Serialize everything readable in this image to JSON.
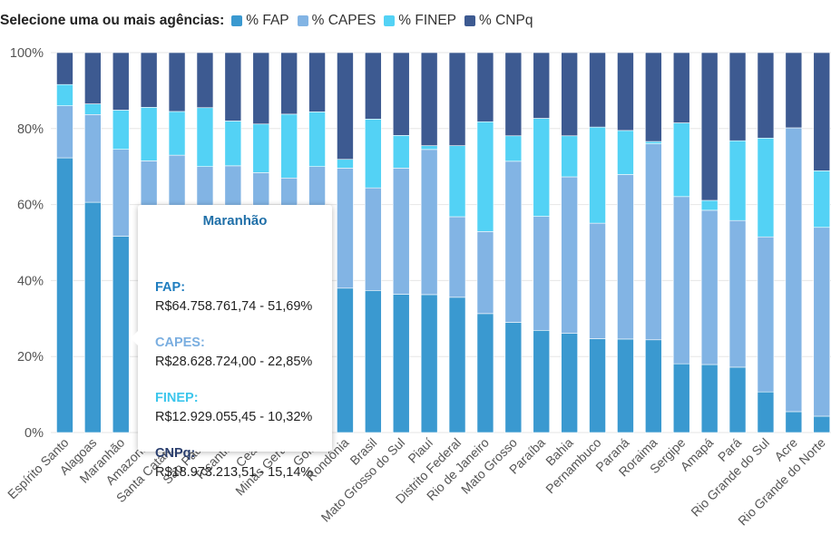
{
  "legend": {
    "title": "Selecione uma ou mais agências:",
    "items": [
      {
        "label": "% FAP",
        "color": "#3a99d0"
      },
      {
        "label": "% CAPES",
        "color": "#82b4e4"
      },
      {
        "label": "% FINEP",
        "color": "#53d2f5"
      },
      {
        "label": "% CNPq",
        "color": "#3d5a91"
      }
    ]
  },
  "tooltip": {
    "title": "Maranhão",
    "title_color": "#1f6fa8",
    "entries": [
      {
        "label": "FAP:",
        "value": "R$64.758.761,74 - 51,69%",
        "color": "#1f7dbf"
      },
      {
        "label": "CAPES:",
        "value": "R$28.628.724,00 - 22,85%",
        "color": "#7aaee0"
      },
      {
        "label": "FINEP:",
        "value": "R$12.929.055,45 - 10,32%",
        "color": "#3cc6ec"
      },
      {
        "label": "CNPq:",
        "value": "R$18.973.213,51 - 15,14%",
        "color": "#2b3f6e"
      }
    ]
  },
  "chart_data": {
    "type": "bar",
    "stacked": true,
    "percent": true,
    "ylim": [
      0,
      100
    ],
    "yticks": [
      "0%",
      "20%",
      "40%",
      "60%",
      "80%",
      "100%"
    ],
    "grid": true,
    "categories": [
      "Espírito Santo",
      "Alagoas",
      "Maranhão",
      "Amazonas",
      "Santa Catarina",
      "São Paulo",
      "Tocantins",
      "Ceará",
      "Minas Gerais",
      "Goiás",
      "Rondônia",
      "Brasil",
      "Mato Grosso do Sul",
      "Piauí",
      "Distrito Federal",
      "Rio de Janeiro",
      "Mato Grosso",
      "Paraíba",
      "Bahia",
      "Pernambuco",
      "Paraná",
      "Roraima",
      "Sergipe",
      "Amapá",
      "Pará",
      "Rio Grande do Sul",
      "Acre",
      "Rio Grande do Norte"
    ],
    "series": [
      {
        "name": "% FAP",
        "color": "#3a99d0",
        "values": [
          72.3,
          60.6,
          51.69,
          50.0,
          49.5,
          49.0,
          48.5,
          48.0,
          47.0,
          45.0,
          38.0,
          37.4,
          36.4,
          36.3,
          35.6,
          31.3,
          29.0,
          26.9,
          26.1,
          24.7,
          24.6,
          24.4,
          18.1,
          17.9,
          17.2,
          10.7,
          5.5,
          4.3
        ]
      },
      {
        "name": "% CAPES",
        "color": "#82b4e4",
        "values": [
          13.7,
          23.1,
          22.85,
          21.5,
          23.5,
          21.0,
          21.7,
          20.4,
          20.0,
          25.0,
          31.6,
          27.0,
          33.2,
          38.2,
          21.2,
          21.6,
          42.4,
          30.0,
          41.2,
          30.4,
          43.3,
          51.6,
          44.0,
          40.6,
          38.6,
          40.8,
          74.7,
          49.7
        ]
      },
      {
        "name": "% FINEP",
        "color": "#53d2f5",
        "values": [
          5.6,
          2.8,
          10.32,
          14.1,
          11.5,
          15.5,
          11.8,
          12.8,
          16.8,
          14.4,
          2.3,
          18.1,
          8.6,
          1.0,
          18.7,
          28.9,
          6.7,
          25.8,
          10.8,
          25.3,
          11.6,
          0.6,
          19.4,
          2.6,
          21.0,
          26.0,
          0.0,
          14.9
        ]
      },
      {
        "name": "% CNPq",
        "color": "#3d5a91",
        "values": [
          8.4,
          13.5,
          15.14,
          14.4,
          15.5,
          14.5,
          18.0,
          18.8,
          16.2,
          15.6,
          28.1,
          17.5,
          21.8,
          24.5,
          24.5,
          18.2,
          21.9,
          17.3,
          21.9,
          19.6,
          20.5,
          23.4,
          18.5,
          38.9,
          23.2,
          22.5,
          19.8,
          31.1
        ]
      }
    ]
  }
}
